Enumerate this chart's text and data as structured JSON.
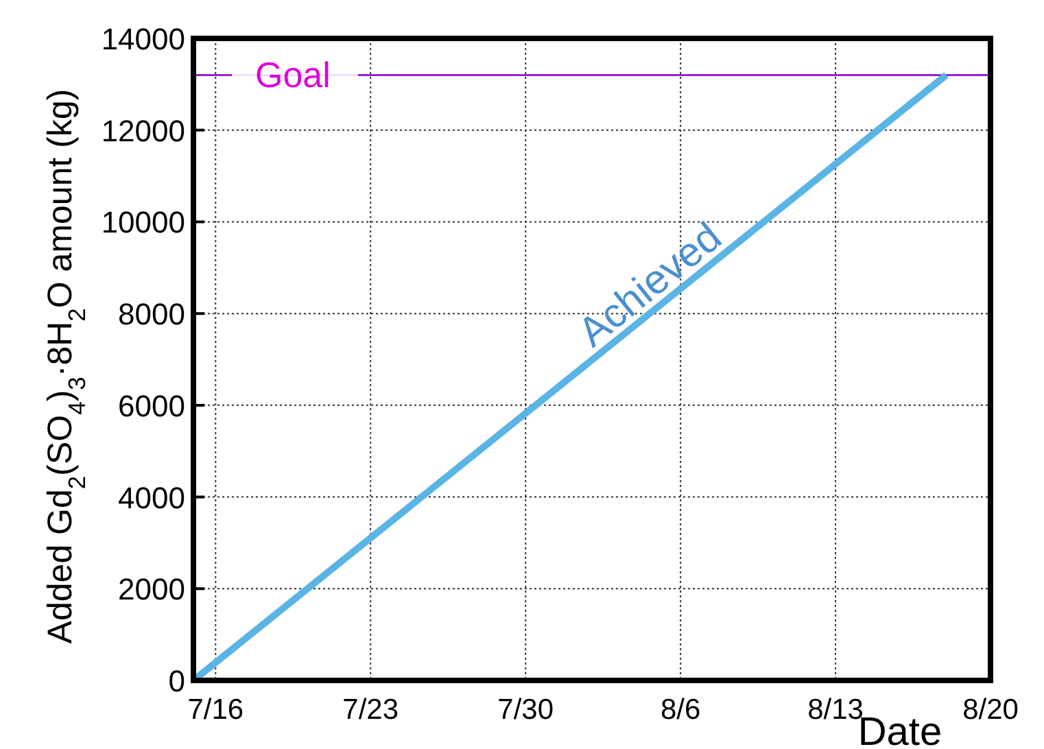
{
  "chart_data": {
    "type": "line",
    "xlabel": "Date",
    "ylabel": "Added Gd$_{2}$(SO$_{4}$)$_{3}$·8H$_{2}$O amount (kg)",
    "x": [
      "--07-15",
      "--08-18"
    ],
    "series": [
      {
        "color": "#5ab4e5",
        "values": [
          0,
          13200
        ]
      }
    ],
    "xlim": [
      "--07-15",
      "--08-20"
    ],
    "xticks": [
      {
        "value": "--07-16",
        "label": "7/16"
      },
      {
        "value": "--07-23",
        "label": "7/23"
      },
      {
        "value": "--07-30",
        "label": "7/30"
      },
      {
        "value": "--08-06",
        "label": "8/6"
      },
      {
        "value": "--08-13",
        "label": "8/13"
      },
      {
        "value": "--08-20",
        "label": "8/20"
      }
    ],
    "ylim": [
      0,
      14000
    ],
    "yticks": [
      0,
      2000,
      4000,
      6000,
      8000,
      10000,
      12000,
      14000
    ],
    "grid": true,
    "ref_lines": [
      {
        "axis": "y",
        "value": 13200,
        "label": "Goal",
        "color": "#9b1fd0"
      }
    ],
    "annotations": [
      {
        "text": "Achieved",
        "x": "--08-05",
        "y": 8400
      }
    ]
  }
}
